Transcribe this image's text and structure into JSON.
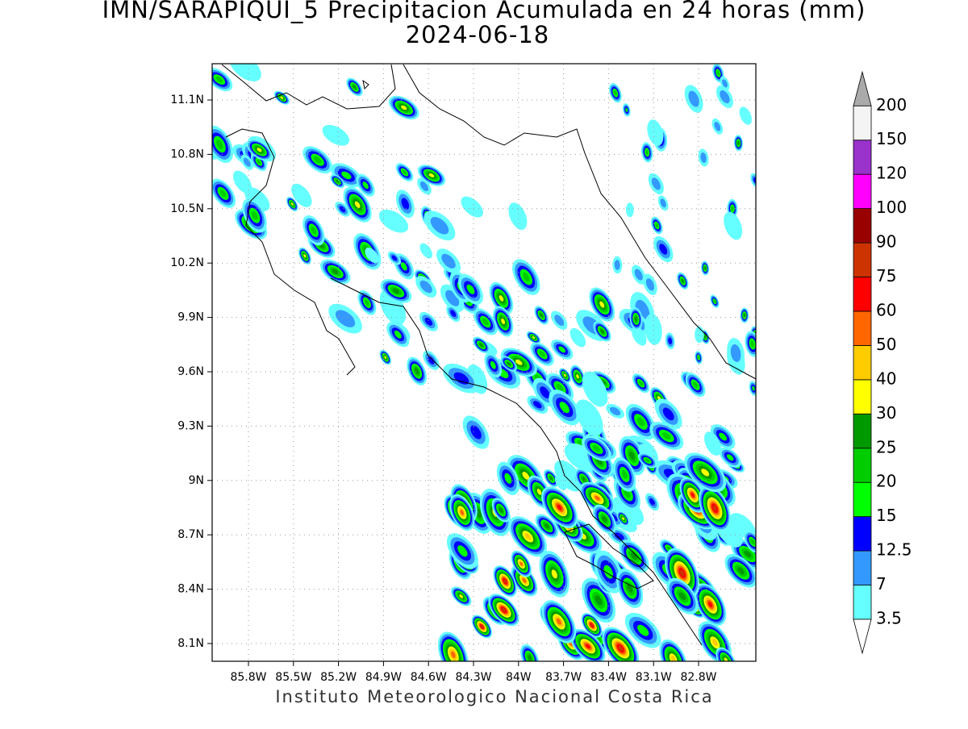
{
  "title": "IMN/SARAPIQUI_5 Precipitacion Acumulada en 24 horas (mm)",
  "subtitle": "2024-06-18",
  "x_axis": {
    "ticks": [
      "85.8W",
      "85.5W",
      "85.2W",
      "84.9W",
      "84.6W",
      "84.3W",
      "84W",
      "83.7W",
      "83.4W",
      "83.1W",
      "82.8W"
    ]
  },
  "y_axis": {
    "ticks": [
      "8.1N",
      "8.4N",
      "8.7N",
      "9N",
      "9.3N",
      "9.6N",
      "9.9N",
      "10.2N",
      "10.5N",
      "10.8N",
      "11.1N"
    ]
  },
  "colorbar": {
    "levels": [
      3.5,
      7,
      12.5,
      15,
      20,
      25,
      30,
      40,
      50,
      60,
      75,
      90,
      100,
      120,
      150,
      200
    ],
    "colors": [
      "#66ffff",
      "#3399ff",
      "#0000ff",
      "#00ff00",
      "#00cc00",
      "#009900",
      "#ffff00",
      "#ffcc00",
      "#ff6600",
      "#ff0000",
      "#cc3300",
      "#990000",
      "#ff00ff",
      "#9933cc",
      "#f4f4f4"
    ],
    "under_color": "#ffffff",
    "over_color": "#aaaaaa"
  },
  "footer": "Instituto Meteorologico Nacional Costa Rica"
}
